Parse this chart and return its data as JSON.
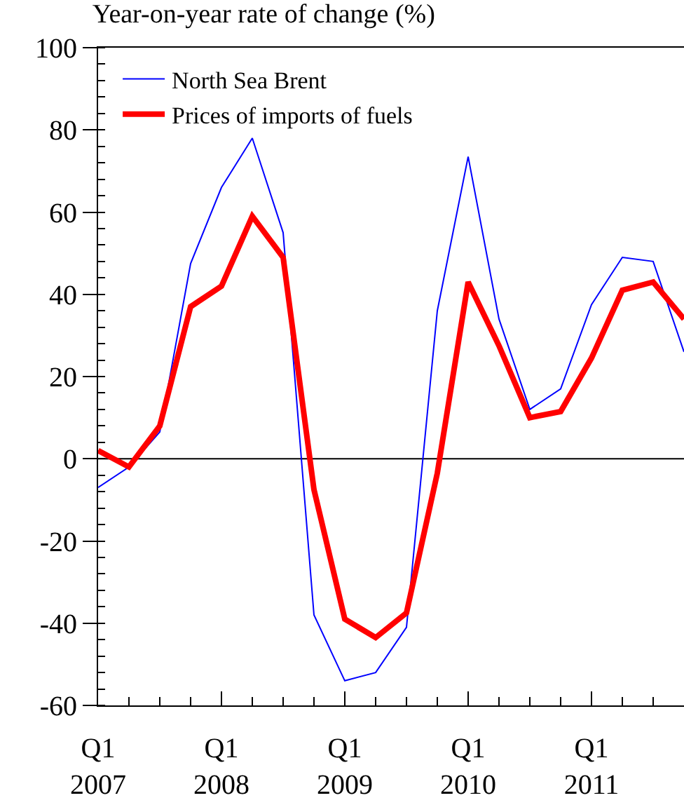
{
  "chart_data": {
    "type": "line",
    "title": "Year-on-year rate of change (%)",
    "categories": [
      "Q1\n2007",
      null,
      null,
      null,
      "Q1\n2008",
      null,
      null,
      null,
      "Q1\n2009",
      null,
      null,
      null,
      "Q1\n2010",
      null,
      null,
      null,
      "Q1\n2011",
      null,
      null,
      null
    ],
    "series": [
      {
        "name": "North Sea Brent",
        "color": "#0000ff",
        "values": [
          -7,
          -2,
          6.5,
          47.5,
          66,
          78,
          55,
          -38,
          -54,
          -52,
          -41,
          36,
          73.5,
          34,
          12,
          17,
          37.5,
          49,
          48,
          26
        ]
      },
      {
        "name": "Prices of imports of fuels",
        "color": "#ff0000",
        "values": [
          2,
          -2,
          8,
          37,
          42,
          59,
          49,
          -7.5,
          -39,
          -43.5,
          -37.5,
          -3.5,
          43,
          27.5,
          10,
          11.5,
          24.5,
          41,
          43,
          34
        ]
      }
    ],
    "ylim": [
      -60,
      100
    ],
    "yticks": [
      -60,
      -40,
      -20,
      0,
      20,
      40,
      60,
      80,
      100
    ],
    "ref_lines": [
      {
        "axis": "y",
        "value": 0,
        "color": "#000000"
      }
    ],
    "grid": false,
    "legend": "top left",
    "marker": "none",
    "line_style": "solid"
  }
}
